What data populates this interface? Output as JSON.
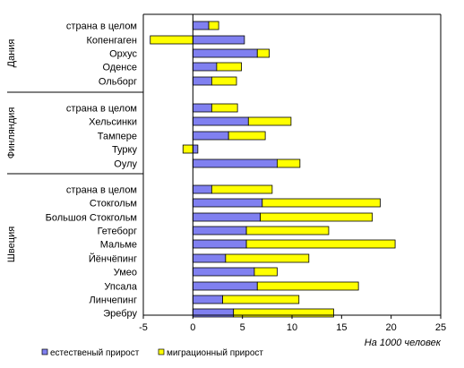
{
  "chart_data": {
    "type": "bar",
    "orientation": "horizontal",
    "stacked": true,
    "xlim": [
      -5,
      25
    ],
    "x_ticks": [
      "-5",
      "0",
      "5",
      "10",
      "15",
      "20",
      "25"
    ],
    "unit_note": "На 1000 человек",
    "legend_position": "bottom-left",
    "grid": false,
    "series": [
      {
        "name": "естественый прирост",
        "color": "#8080f0"
      },
      {
        "name": "миграционный прирост",
        "color": "#ffff00"
      }
    ],
    "groups": [
      {
        "label": "Дания",
        "categories": [
          "страна в целом",
          "Копенгаген",
          "Орхус",
          "Оденсе",
          "Ольборг"
        ],
        "natural": [
          1.6,
          5.2,
          6.5,
          2.4,
          1.9
        ],
        "migration": [
          1.0,
          -4.3,
          1.2,
          2.5,
          2.5
        ]
      },
      {
        "label": "Финляндия",
        "categories": [
          "страна в целом",
          "Хельсинки",
          "Тампере",
          "Турку",
          "Оулу"
        ],
        "natural": [
          1.9,
          5.6,
          3.6,
          0.5,
          8.5
        ],
        "migration": [
          2.6,
          4.3,
          3.7,
          -1.0,
          2.3
        ]
      },
      {
        "label": "Швеция",
        "categories": [
          "страна в целом",
          "Стокгольм",
          "Большоя Стокгольм",
          "Гетеборг",
          "Мальме",
          "Йёнчёпинг",
          "Умео",
          "Упсала",
          "Линчепинг",
          "Эребру"
        ],
        "natural": [
          1.9,
          7.0,
          6.8,
          5.4,
          5.4,
          3.3,
          6.2,
          6.5,
          3.0,
          4.1
        ],
        "migration": [
          6.1,
          11.9,
          11.3,
          8.3,
          15.0,
          8.4,
          2.3,
          10.2,
          7.7,
          10.1
        ]
      }
    ]
  }
}
